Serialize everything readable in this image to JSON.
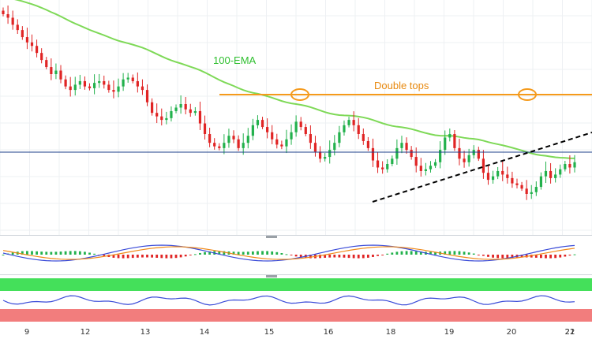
{
  "chart_data": {
    "type": "candlestick",
    "panels": [
      "price",
      "macd",
      "rsi"
    ],
    "x_tick_labels": [
      "9",
      "12",
      "13",
      "14",
      "15",
      "16",
      "18",
      "19",
      "20",
      "21",
      "22"
    ],
    "y_tick_labels": [],
    "price": {
      "candles_ohlc_close_path": [
        0.0,
        0.4,
        1.2,
        1.8,
        2.6,
        3.2,
        3.6,
        4.4,
        5.2,
        6.0,
        6.8,
        6.4,
        7.4,
        8.2,
        8.6,
        8.0,
        7.6,
        8.2,
        8.4,
        7.8,
        7.6,
        8.0,
        8.6,
        8.8,
        8.2,
        7.4,
        7.2,
        7.6,
        8.2,
        8.6,
        10.0,
        11.2,
        11.6,
        12.0,
        11.8,
        11.0,
        10.6,
        10.2,
        10.8,
        11.2,
        11.0,
        12.4,
        13.6,
        14.6,
        15.0,
        15.2,
        14.6,
        13.8,
        14.2,
        15.2,
        14.6,
        13.8,
        12.6,
        12.0,
        12.8,
        13.4,
        14.2,
        14.8,
        15.0,
        14.2,
        13.4,
        12.2,
        12.8,
        13.6,
        14.6,
        15.6,
        16.4,
        16.2,
        15.4,
        14.6,
        13.4,
        12.6,
        12.0,
        12.6,
        13.6,
        14.4,
        15.2,
        16.6,
        17.4,
        17.6,
        17.0,
        16.4,
        15.2,
        14.6,
        15.4,
        16.2,
        17.2,
        17.8,
        17.6,
        17.2,
        16.8,
        15.4,
        14.0,
        13.6,
        15.2,
        16.4,
        16.8,
        16.0,
        15.4,
        16.4,
        18.0,
        18.8,
        18.4,
        17.8,
        18.2,
        18.6,
        19.2,
        19.4,
        19.8,
        20.4,
        20.2,
        19.6,
        18.4,
        17.8,
        18.6,
        18.2,
        17.6,
        17.0,
        17.4,
        16.8
      ],
      "ema_label": "100-EMA",
      "annotation": "Double tops",
      "last_price_line": true
    },
    "macd": {
      "histogram": true,
      "lines": 2
    },
    "rsi": {
      "bands": [
        "overbought",
        "oversold"
      ]
    }
  },
  "labels": {
    "ema": "100-EMA",
    "double_tops": "Double tops"
  },
  "colors": {
    "bull": "#22b14c",
    "bear": "#e02424",
    "ema": "#7ed957",
    "annotation": "#f59a1b",
    "trend": "#000000",
    "price_line": "#1c3f8a",
    "rsi_upper_band": "#44e05a",
    "rsi_lower_band": "#f27d7d",
    "rsi_line": "#3a4bd8",
    "macd_line": "#3a4bd8",
    "signal_line": "#f08a1a"
  }
}
